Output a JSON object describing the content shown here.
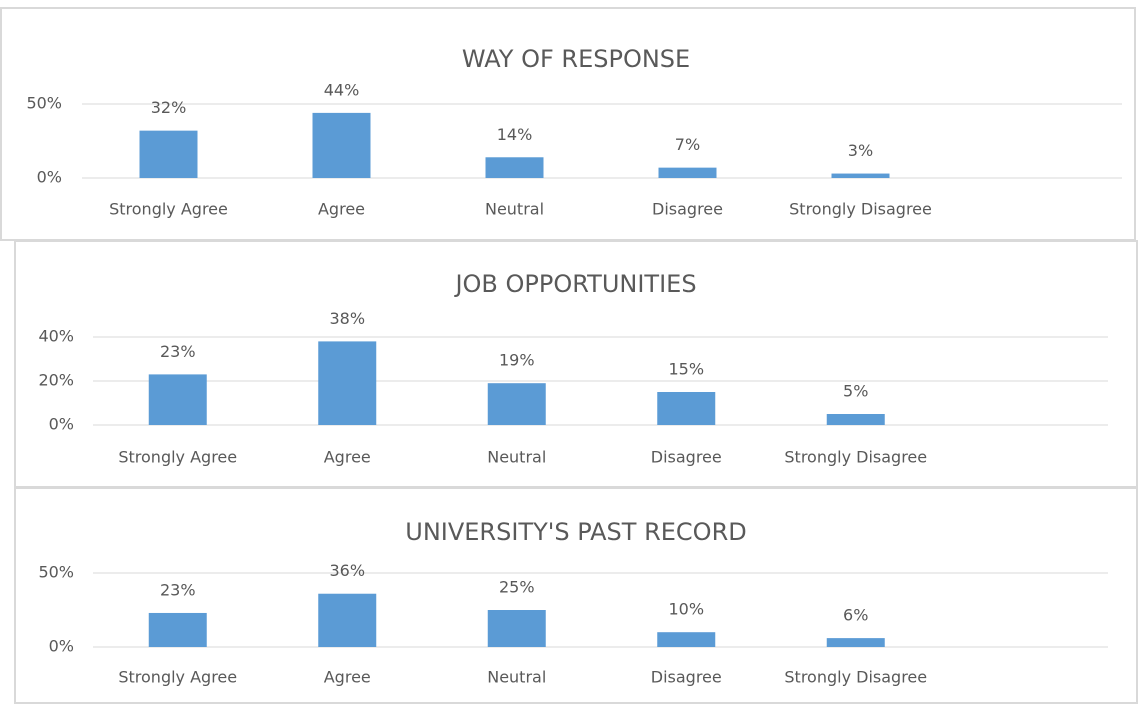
{
  "chart_data": [
    {
      "type": "bar",
      "title": "WAY OF RESPONSE",
      "categories": [
        "Strongly Agree",
        "Agree",
        "Neutral",
        "Disagree",
        "Strongly Disagree"
      ],
      "values": [
        32,
        44,
        14,
        7,
        3
      ],
      "value_labels": [
        "32%",
        "44%",
        "14%",
        "7%",
        "3%"
      ],
      "color": "#5b9bd5",
      "ylim": [
        0,
        50
      ],
      "yticks": [
        {
          "value": 0,
          "label": "0%"
        },
        {
          "value": 50,
          "label": "50%"
        }
      ],
      "grid": true
    },
    {
      "type": "bar",
      "title": "JOB OPPORTUNITIES",
      "categories": [
        "Strongly Agree",
        "Agree",
        "Neutral",
        "Disagree",
        "Strongly Disagree"
      ],
      "values": [
        23,
        38,
        19,
        15,
        5
      ],
      "value_labels": [
        "23%",
        "38%",
        "19%",
        "15%",
        "5%"
      ],
      "color": "#5b9bd5",
      "ylim": [
        0,
        40
      ],
      "yticks": [
        {
          "value": 0,
          "label": "0%"
        },
        {
          "value": 20,
          "label": "20%"
        },
        {
          "value": 40,
          "label": "40%"
        }
      ],
      "grid": true
    },
    {
      "type": "bar",
      "title": "UNIVERSITY'S PAST RECORD",
      "categories": [
        "Strongly Agree",
        "Agree",
        "Neutral",
        "Disagree",
        "Strongly Disagree"
      ],
      "values": [
        23,
        36,
        25,
        10,
        6
      ],
      "value_labels": [
        "23%",
        "36%",
        "25%",
        "10%",
        "6%"
      ],
      "color": "#5b9bd5",
      "ylim": [
        0,
        50
      ],
      "yticks": [
        {
          "value": 0,
          "label": "0%"
        },
        {
          "value": 50,
          "label": "50%"
        }
      ],
      "grid": true
    }
  ]
}
